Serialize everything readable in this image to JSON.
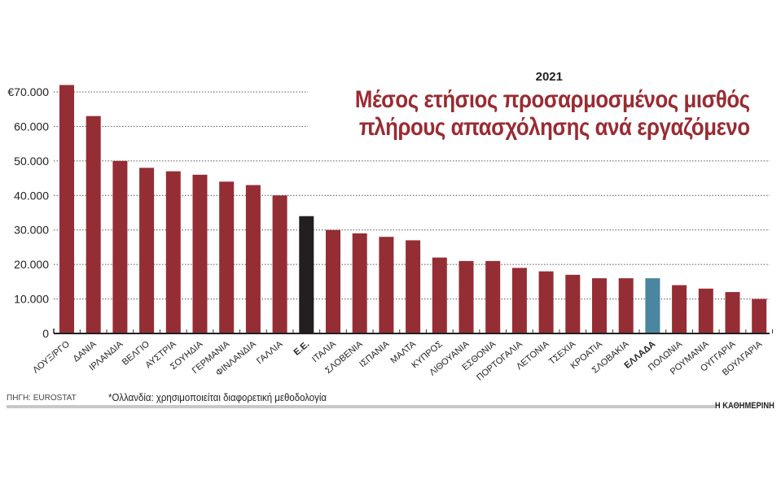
{
  "chart_data": {
    "type": "bar",
    "title": "Μέσος ετήσιος προσαρμοσμένος μισθός πλήρους απασχόλησης ανά εργαζόμενο",
    "title_lines": [
      "Μέσος ετήσιος προσαρμοσμένος μισθός",
      "πλήρους απασχόλησης ανά εργαζόμενο"
    ],
    "subtitle": "2021",
    "categories": [
      "ΛΟΥΞ/ΡΓΟ",
      "ΔΑΝΙΑ",
      "ΙΡΛΑΝΔΙΑ",
      "ΒΕΛΓΙΟ",
      "ΑΥΣΤΡΙΑ",
      "ΣΟΥΗΔΙΑ",
      "ΓΕΡΜΑΝΙΑ",
      "ΦΙΝΛΑΝΔΙΑ",
      "ΓΑΛΛΙΑ",
      "Ε.Ε.",
      "ΙΤΑΛΙΑ",
      "ΣΛΟΒΕΝΙΑ",
      "ΙΣΠΑΝΙΑ",
      "ΜΑΛΤΑ",
      "ΚΥΠΡΟΣ",
      "ΛΙΘΟΥΑΝΙΑ",
      "ΕΣΘΟΝΙΑ",
      "ΠΟΡΤΟΓΑΛΙΑ",
      "ΛΕΤΟΝΙΑ",
      "ΤΣΕΧΙΑ",
      "ΚΡΟΑΤΙΑ",
      "ΣΛΟΒΑΚΙΑ",
      "ΕΛΛΑΔΑ",
      "ΠΟΛΩΝΙΑ",
      "ΡΟΥΜΑΝΙΑ",
      "ΟΥΓΓΑΡΙΑ",
      "ΒΟΥΛΓΑΡΙΑ"
    ],
    "values": [
      72000,
      63000,
      50000,
      48000,
      47000,
      46000,
      44000,
      43000,
      40000,
      34000,
      30000,
      29000,
      28000,
      27000,
      22000,
      21000,
      21000,
      19000,
      18000,
      17000,
      16000,
      16000,
      16000,
      14000,
      13000,
      12000,
      10000
    ],
    "highlight": {
      "Ε.Ε.": "#231f20",
      "ΕΛΛΑΔΑ": "#4a86a0"
    },
    "bold_categories": [
      "Ε.Ε.",
      "ΕΛΛΑΔΑ"
    ],
    "bar_color": "#952d35",
    "ylim": [
      0,
      70000
    ],
    "yticks": [
      0,
      10000,
      20000,
      30000,
      40000,
      50000,
      60000,
      70000
    ],
    "ytick_labels": [
      "0",
      "10.000",
      "20.000",
      "30.000",
      "40.000",
      "50.000",
      "60.000",
      "€70.000"
    ],
    "grid": true,
    "xlabel": "",
    "ylabel": ""
  },
  "footer": {
    "source": "ΠΗΓΗ: EUROSTAT",
    "note": "*Ολλανδία: χρησιμοποιείται διαφορετική μεθοδολογία",
    "brand": "Η ΚΑΘΗΜΕΡΙΝΗ"
  }
}
